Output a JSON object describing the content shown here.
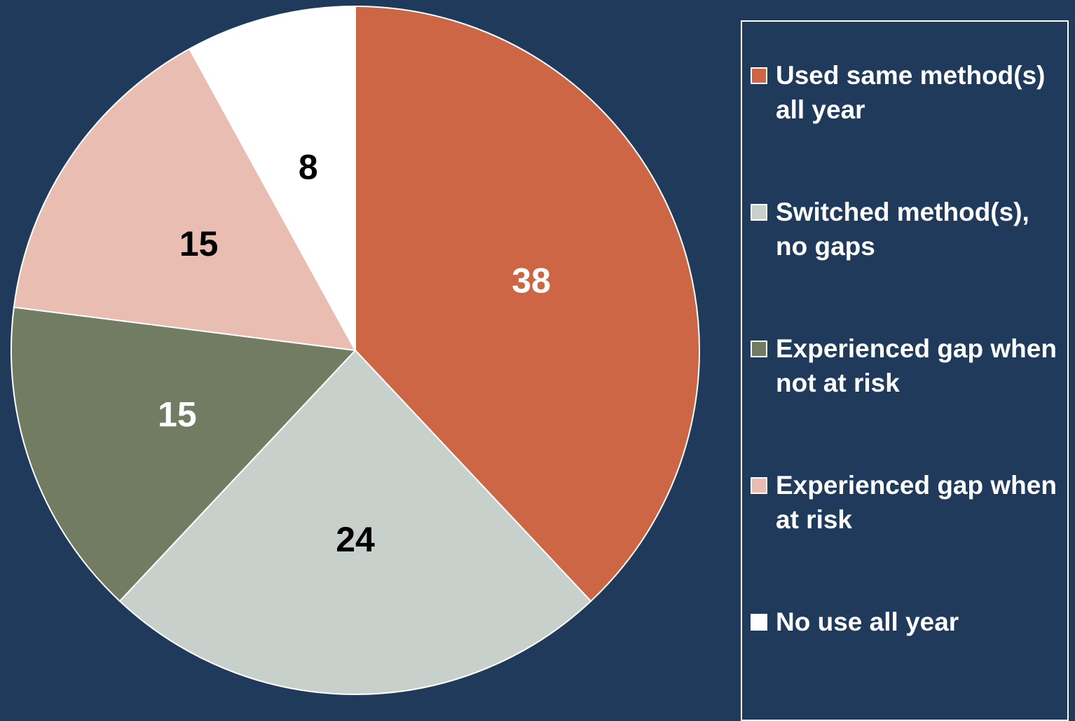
{
  "chart_data": {
    "type": "pie",
    "title": "",
    "start_angle_deg": 0,
    "direction": "clockwise",
    "legend_position": "right",
    "slices": [
      {
        "label": "Used same method(s) all year",
        "value": 38,
        "value_label": "38",
        "color": "#cc6644",
        "label_color": "#ffffff"
      },
      {
        "label": "Switched method(s), no gaps",
        "value": 24,
        "value_label": "24",
        "color": "#c8d0cc",
        "label_color": "#000000"
      },
      {
        "label": "Experienced gap when not at risk",
        "value": 15,
        "value_label": "15",
        "color": "#717c62",
        "label_color": "#ffffff"
      },
      {
        "label": "Experienced gap when at risk",
        "value": 15,
        "value_label": "15",
        "color": "#eabdb2",
        "label_color": "#000000"
      },
      {
        "label": "No use all year",
        "value": 8,
        "value_label": "8",
        "color": "#ffffff",
        "label_color": "#000000"
      }
    ]
  },
  "legend": {
    "items": [
      {
        "label": "Used same method(s) all year",
        "color": "#cc6644"
      },
      {
        "label": "Switched method(s), no gaps",
        "color": "#c8d0cc"
      },
      {
        "label": "Experienced gap when not at risk",
        "color": "#717c62"
      },
      {
        "label": "Experienced gap when at risk",
        "color": "#eabdb2"
      },
      {
        "label": "No use all year",
        "color": "#ffffff"
      }
    ]
  },
  "colors": {
    "background": "#1f3a5a",
    "slice_border": "#ffffff"
  }
}
